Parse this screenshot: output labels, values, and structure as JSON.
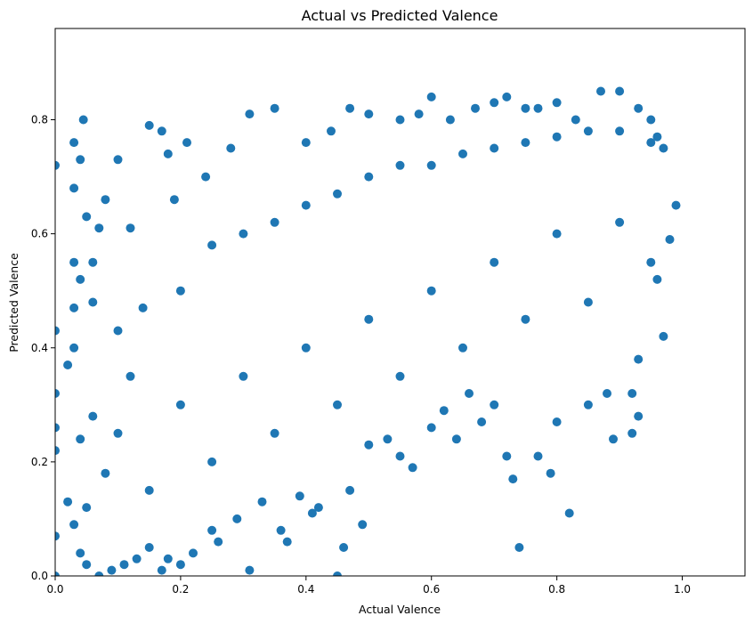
{
  "chart_data": {
    "type": "scatter",
    "title": "Actual vs Predicted Valence",
    "xlabel": "Actual Valence",
    "ylabel": "Predicted Valence",
    "xlim": [
      0,
      1.1
    ],
    "ylim": [
      0,
      0.96
    ],
    "x_ticks": [
      0.0,
      0.2,
      0.4,
      0.6,
      0.8,
      1.0
    ],
    "x_tick_labels": [
      "0.0",
      "0.2",
      "0.4",
      "0.6",
      "0.8",
      "1.0"
    ],
    "y_ticks": [
      0.0,
      0.2,
      0.4,
      0.6,
      0.8
    ],
    "y_tick_labels": [
      "0.0",
      "0.2",
      "0.4",
      "0.6",
      "0.8"
    ],
    "grid": false,
    "legend": "none",
    "marker_color": "#1f77b4",
    "series": [
      {
        "points": [
          [
            0.0,
            0.72
          ],
          [
            0.0,
            0.43
          ],
          [
            0.0,
            0.32
          ],
          [
            0.0,
            0.26
          ],
          [
            0.0,
            0.22
          ],
          [
            0.0,
            0.07
          ],
          [
            0.0,
            0.0
          ],
          [
            0.03,
            0.76
          ],
          [
            0.03,
            0.68
          ],
          [
            0.04,
            0.73
          ],
          [
            0.045,
            0.8
          ],
          [
            0.05,
            0.63
          ],
          [
            0.06,
            0.55
          ],
          [
            0.07,
            0.61
          ],
          [
            0.08,
            0.66
          ],
          [
            0.1,
            0.73
          ],
          [
            0.12,
            0.61
          ],
          [
            0.15,
            0.79
          ],
          [
            0.17,
            0.78
          ],
          [
            0.18,
            0.74
          ],
          [
            0.21,
            0.76
          ],
          [
            0.19,
            0.66
          ],
          [
            0.24,
            0.7
          ],
          [
            0.28,
            0.75
          ],
          [
            0.31,
            0.81
          ],
          [
            0.35,
            0.82
          ],
          [
            0.4,
            0.76
          ],
          [
            0.44,
            0.78
          ],
          [
            0.47,
            0.82
          ],
          [
            0.5,
            0.81
          ],
          [
            0.55,
            0.8
          ],
          [
            0.58,
            0.81
          ],
          [
            0.6,
            0.84
          ],
          [
            0.63,
            0.8
          ],
          [
            0.67,
            0.82
          ],
          [
            0.7,
            0.83
          ],
          [
            0.72,
            0.84
          ],
          [
            0.75,
            0.82
          ],
          [
            0.77,
            0.82
          ],
          [
            0.8,
            0.83
          ],
          [
            0.83,
            0.8
          ],
          [
            0.87,
            0.85
          ],
          [
            0.9,
            0.85
          ],
          [
            0.93,
            0.82
          ],
          [
            0.95,
            0.8
          ],
          [
            0.96,
            0.77
          ],
          [
            0.97,
            0.75
          ],
          [
            0.99,
            0.65
          ],
          [
            0.98,
            0.59
          ],
          [
            0.96,
            0.52
          ],
          [
            0.97,
            0.42
          ],
          [
            0.93,
            0.38
          ],
          [
            0.92,
            0.32
          ],
          [
            0.93,
            0.28
          ],
          [
            0.92,
            0.25
          ],
          [
            0.89,
            0.24
          ],
          [
            0.88,
            0.32
          ],
          [
            0.85,
            0.3
          ],
          [
            0.82,
            0.11
          ],
          [
            0.8,
            0.27
          ],
          [
            0.79,
            0.18
          ],
          [
            0.77,
            0.21
          ],
          [
            0.74,
            0.05
          ],
          [
            0.73,
            0.17
          ],
          [
            0.72,
            0.21
          ],
          [
            0.7,
            0.3
          ],
          [
            0.68,
            0.27
          ],
          [
            0.66,
            0.32
          ],
          [
            0.64,
            0.24
          ],
          [
            0.62,
            0.29
          ],
          [
            0.6,
            0.26
          ],
          [
            0.57,
            0.19
          ],
          [
            0.55,
            0.21
          ],
          [
            0.53,
            0.24
          ],
          [
            0.5,
            0.23
          ],
          [
            0.49,
            0.09
          ],
          [
            0.47,
            0.15
          ],
          [
            0.46,
            0.05
          ],
          [
            0.45,
            0.0
          ],
          [
            0.42,
            0.12
          ],
          [
            0.41,
            0.11
          ],
          [
            0.39,
            0.14
          ],
          [
            0.37,
            0.06
          ],
          [
            0.36,
            0.08
          ],
          [
            0.33,
            0.13
          ],
          [
            0.31,
            0.01
          ],
          [
            0.29,
            0.1
          ],
          [
            0.26,
            0.06
          ],
          [
            0.25,
            0.08
          ],
          [
            0.22,
            0.04
          ],
          [
            0.2,
            0.02
          ],
          [
            0.18,
            0.03
          ],
          [
            0.17,
            0.01
          ],
          [
            0.15,
            0.05
          ],
          [
            0.13,
            0.03
          ],
          [
            0.11,
            0.02
          ],
          [
            0.09,
            0.01
          ],
          [
            0.07,
            0.0
          ],
          [
            0.05,
            0.02
          ],
          [
            0.04,
            0.04
          ],
          [
            0.03,
            0.09
          ],
          [
            0.02,
            0.13
          ],
          [
            0.02,
            0.37
          ],
          [
            0.03,
            0.4
          ],
          [
            0.03,
            0.47
          ],
          [
            0.04,
            0.52
          ],
          [
            0.06,
            0.48
          ],
          [
            0.1,
            0.43
          ],
          [
            0.14,
            0.47
          ],
          [
            0.2,
            0.5
          ],
          [
            0.25,
            0.58
          ],
          [
            0.3,
            0.6
          ],
          [
            0.35,
            0.62
          ],
          [
            0.4,
            0.65
          ],
          [
            0.45,
            0.67
          ],
          [
            0.5,
            0.7
          ],
          [
            0.55,
            0.72
          ],
          [
            0.6,
            0.72
          ],
          [
            0.65,
            0.74
          ],
          [
            0.7,
            0.75
          ],
          [
            0.75,
            0.76
          ],
          [
            0.8,
            0.77
          ],
          [
            0.85,
            0.78
          ],
          [
            0.9,
            0.78
          ],
          [
            0.95,
            0.76
          ],
          [
            0.3,
            0.35
          ],
          [
            0.4,
            0.4
          ],
          [
            0.5,
            0.45
          ],
          [
            0.6,
            0.5
          ],
          [
            0.7,
            0.55
          ],
          [
            0.8,
            0.6
          ],
          [
            0.9,
            0.62
          ],
          [
            0.2,
            0.3
          ],
          [
            0.1,
            0.25
          ],
          [
            0.25,
            0.2
          ],
          [
            0.35,
            0.25
          ],
          [
            0.45,
            0.3
          ],
          [
            0.55,
            0.35
          ],
          [
            0.65,
            0.4
          ],
          [
            0.75,
            0.45
          ],
          [
            0.85,
            0.48
          ],
          [
            0.95,
            0.55
          ],
          [
            0.15,
            0.15
          ],
          [
            0.12,
            0.35
          ],
          [
            0.08,
            0.18
          ],
          [
            0.06,
            0.28
          ],
          [
            0.05,
            0.12
          ],
          [
            0.04,
            0.24
          ],
          [
            0.03,
            0.55
          ]
        ]
      }
    ]
  }
}
